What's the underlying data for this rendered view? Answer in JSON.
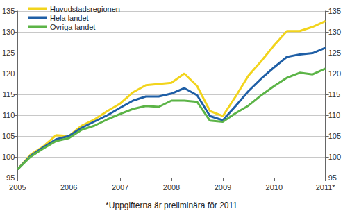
{
  "chart_data": {
    "type": "line",
    "categories": [
      "2005",
      null,
      null,
      null,
      "2006",
      null,
      null,
      null,
      "2007",
      null,
      null,
      null,
      "2008",
      null,
      null,
      null,
      "2009",
      null,
      null,
      null,
      "2010",
      null,
      null,
      null,
      "2011*"
    ],
    "series": [
      {
        "name": "Huvudstadsregionen",
        "color": "#f2d41c",
        "values": [
          97,
          100.5,
          102.5,
          105.2,
          105,
          107.5,
          109,
          111,
          112.8,
          115.5,
          117.2,
          117.5,
          117.8,
          120,
          117,
          111,
          109.8,
          114.5,
          119.5,
          123,
          126.8,
          130.2,
          130.2,
          131.2,
          132.6
        ]
      },
      {
        "name": "Hela landet",
        "color": "#1f5fa6",
        "values": [
          97,
          100.2,
          102.3,
          104.2,
          105,
          107,
          108.5,
          110,
          111.8,
          113.5,
          114.5,
          114.5,
          115.2,
          116.5,
          114.8,
          109.8,
          108.8,
          112.2,
          115.8,
          118.8,
          121.5,
          124,
          124.6,
          124.9,
          126.2
        ]
      },
      {
        "name": "Övriga landet",
        "color": "#5cb447",
        "values": [
          97,
          100,
          102,
          103.8,
          104.5,
          106.5,
          107.5,
          109,
          110.3,
          111.5,
          112.2,
          112,
          113.5,
          113.5,
          113.2,
          108.7,
          108.4,
          110.5,
          112.3,
          114.8,
          117,
          119,
          120.2,
          119.8,
          121.2
        ]
      }
    ],
    "ylim": [
      95,
      135
    ],
    "yticks": [
      95,
      100,
      105,
      110,
      115,
      120,
      125,
      130,
      135
    ],
    "y2lim": [
      95,
      135
    ],
    "y2ticks": [
      95,
      100,
      105,
      110,
      115,
      120,
      125,
      130,
      135
    ],
    "grid": true,
    "legend": "upper left",
    "annotations": [
      "*Uppgifterna är preliminära för 2011"
    ]
  }
}
